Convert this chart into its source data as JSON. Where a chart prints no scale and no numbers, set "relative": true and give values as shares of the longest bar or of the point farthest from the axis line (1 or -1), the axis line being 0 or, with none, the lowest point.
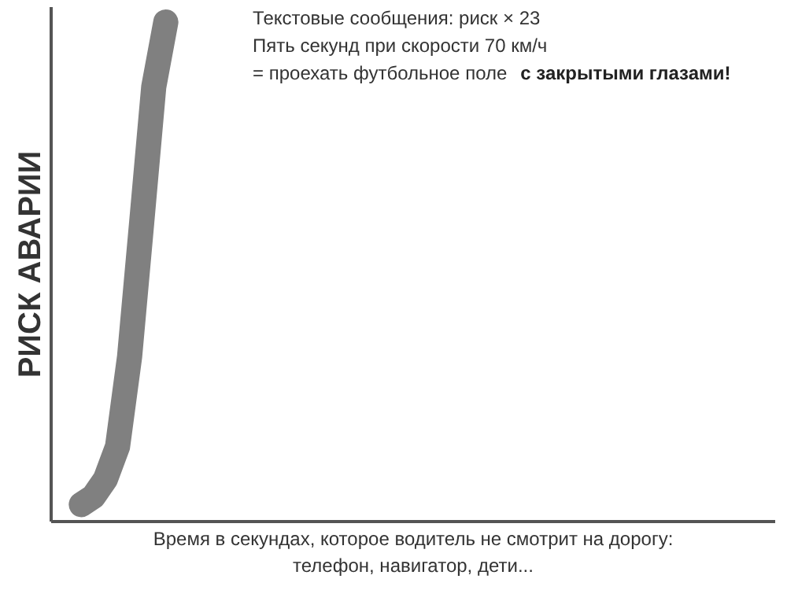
{
  "chart_data": {
    "type": "line",
    "relative": true,
    "line_style": "solid",
    "ylabel": "РИСК АВАРИИ",
    "xlabel": "Время в секундах, которое водитель не смотрит на дорогу:\nтелефон, навигатор, дети...",
    "categories": [
      null,
      null,
      null,
      null,
      null,
      null,
      null,
      null,
      null,
      null,
      null,
      null,
      null,
      null,
      null,
      null,
      null,
      null,
      null,
      null,
      null,
      null,
      null,
      null,
      null,
      null,
      null,
      null,
      null,
      null,
      null,
      null,
      null,
      null,
      null,
      null,
      null,
      null,
      null,
      null,
      null,
      null,
      null,
      null,
      null,
      null,
      null,
      null,
      null,
      null,
      null,
      null,
      null,
      null,
      null,
      null,
      null,
      null,
      null,
      null
    ],
    "series": [
      {
        "color": "#808080",
        "values": [
          null,
          null,
          0.034,
          0.05,
          0.085,
          0.15,
          0.33,
          0.598,
          0.87,
          1.0,
          null,
          null,
          null,
          null,
          null,
          null,
          null,
          null,
          null,
          null,
          null,
          null,
          null,
          null,
          null,
          null,
          null,
          null,
          null,
          null,
          null,
          null,
          null,
          null,
          null,
          null,
          null,
          null,
          null,
          null,
          null,
          null,
          null,
          null,
          null,
          null,
          null,
          null,
          null,
          null,
          null,
          null,
          null,
          null,
          null,
          null,
          null,
          null,
          null,
          null
        ]
      }
    ],
    "annotations": [
      "Текстовые сообщения: риск × 23",
      "Пять секунд при скорости 70 км/ч",
      "= проехать футбольное поле ",
      "с закрытыми глазами!"
    ]
  }
}
